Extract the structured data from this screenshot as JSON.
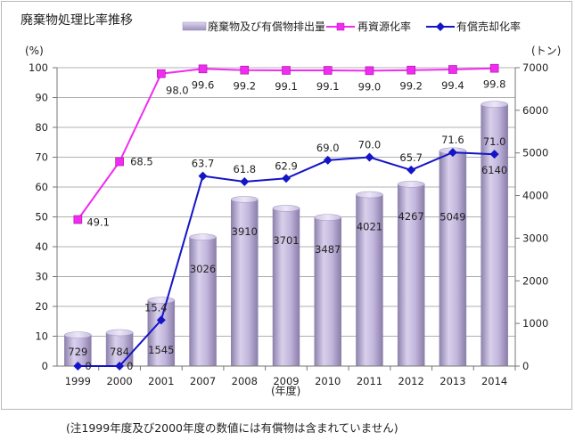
{
  "chart_data": {
    "type": "bar",
    "title": "廃棄物処理比率推移",
    "y_left_unit": "(%)",
    "y_right_unit": "(トン)",
    "x_unit": "(年度)",
    "ylim_left": [
      0,
      100
    ],
    "yticks_left": [
      "0",
      "10",
      "20",
      "30",
      "40",
      "50",
      "60",
      "70",
      "80",
      "90",
      "100"
    ],
    "ylim_right": [
      0,
      7000
    ],
    "yticks_right": [
      "0",
      "1000",
      "2000",
      "3000",
      "4000",
      "5000",
      "6000",
      "7000"
    ],
    "categories": [
      "1999",
      "2000",
      "2001",
      "2007",
      "2008",
      "2009",
      "2010",
      "2011",
      "2012",
      "2013",
      "2014"
    ],
    "grid": true,
    "legend_placement": "top",
    "series": [
      {
        "name": "廃棄物及び有償物排出量",
        "type": "bar",
        "axis": "right",
        "color": "#b3a6cf",
        "values": [
          729,
          784,
          1545,
          3026,
          3910,
          3701,
          3487,
          4021,
          4267,
          5049,
          6140
        ],
        "labels": [
          "729",
          "784",
          "1545",
          "3026",
          "3910",
          "3701",
          "3487",
          "4021",
          "4267",
          "5049",
          "6140"
        ]
      },
      {
        "name": "再資源化率",
        "type": "line",
        "axis": "left",
        "color": "#f02cf0",
        "marker": "square",
        "values": [
          49.1,
          68.5,
          98.0,
          99.6,
          99.2,
          99.1,
          99.1,
          99.0,
          99.2,
          99.4,
          99.8
        ],
        "labels": [
          "49.1",
          "68.5",
          "98.0",
          "99.6",
          "99.2",
          "99.1",
          "99.1",
          "99.0",
          "99.2",
          "99.4",
          "99.8"
        ]
      },
      {
        "name": "有償売却化率",
        "type": "line",
        "axis": "left",
        "color": "#1414c8",
        "marker": "diamond",
        "values": [
          0,
          0,
          15.4,
          63.7,
          61.8,
          62.9,
          69.0,
          70.0,
          65.7,
          71.6,
          71.0
        ],
        "labels": [
          "0",
          "0",
          "15.4",
          "63.7",
          "61.8",
          "62.9",
          "69.0",
          "70.0",
          "65.7",
          "71.6",
          "71.0"
        ]
      }
    ]
  },
  "footnote": "(注1999年度及び2000年度の数値には有償物は含まれていません)"
}
